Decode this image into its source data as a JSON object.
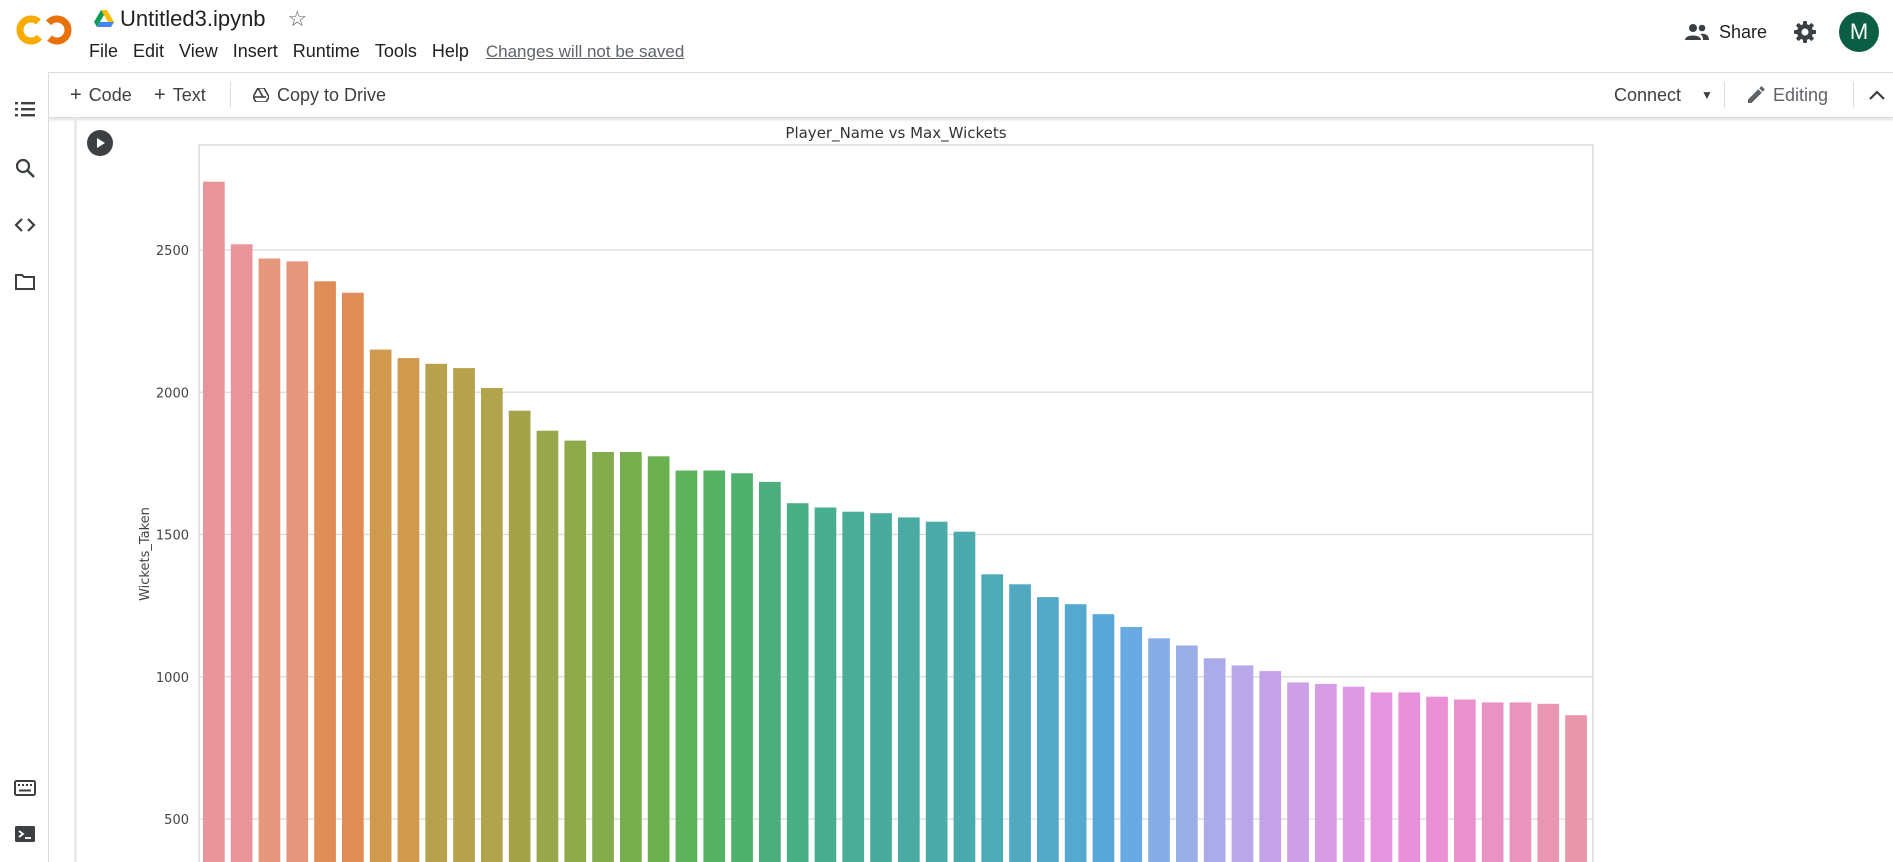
{
  "header": {
    "file_name": "Untitled3.ipynb",
    "menu": [
      "File",
      "Edit",
      "View",
      "Insert",
      "Runtime",
      "Tools",
      "Help"
    ],
    "changes_notice": "Changes will not be saved",
    "share_label": "Share",
    "avatar_letter": "M"
  },
  "toolbar": {
    "code_label": "Code",
    "text_label": "Text",
    "copy_label": "Copy to Drive",
    "connect_label": "Connect",
    "editing_label": "Editing"
  },
  "sidebar": {
    "icons": [
      "table-of-contents-icon",
      "search-icon",
      "code-snippets-icon",
      "files-icon",
      "command-palette-icon",
      "terminal-icon"
    ]
  },
  "colors": {
    "accent_orange": "#f9ab00",
    "avatar_bg": "#0b5e44"
  },
  "chart_data": {
    "type": "bar",
    "title": "Player_Name vs Max_Wickets",
    "xlabel": "",
    "ylabel": "Wickets_Taken",
    "yticks": [
      500,
      1000,
      1500,
      2000,
      2500
    ],
    "grid": true,
    "values": [
      2740,
      2520,
      2470,
      2460,
      2390,
      2350,
      2150,
      2120,
      2100,
      2085,
      2015,
      1935,
      1865,
      1830,
      1790,
      1790,
      1775,
      1725,
      1725,
      1715,
      1685,
      1610,
      1595,
      1580,
      1575,
      1560,
      1545,
      1510,
      1360,
      1325,
      1280,
      1255,
      1220,
      1175,
      1135,
      1110,
      1065,
      1040,
      1020,
      980,
      975,
      965,
      945,
      945,
      930,
      920,
      910,
      910,
      905,
      865
    ],
    "colors": [
      "#e8949a",
      "#e8949a",
      "#e8977f",
      "#e8977f",
      "#e08c56",
      "#e08c56",
      "#d09a4e",
      "#d09a4e",
      "#b7a14d",
      "#b7a14d",
      "#b1a44c",
      "#a4a34a",
      "#98a84a",
      "#8eaa4a",
      "#84ab4c",
      "#78ad4d",
      "#6db04f",
      "#5cb35a",
      "#55b264",
      "#50b06d",
      "#4cae7c",
      "#4aae86",
      "#49ad8f",
      "#49ad97",
      "#49ab9d",
      "#4aaba2",
      "#4aaba8",
      "#4baaae",
      "#4daab7",
      "#50a9be",
      "#52a8c6",
      "#55a8ce",
      "#58a8d7",
      "#68aae2",
      "#87ade6",
      "#9aaee8",
      "#acabe9",
      "#b8a8ea",
      "#c3a2e8",
      "#cd9fe7",
      "#d69de5",
      "#de9be4",
      "#e696e0",
      "#e890da",
      "#e991d4",
      "#e992ce",
      "#e993c5",
      "#e994bd",
      "#e996b3",
      "#e896a9"
    ]
  }
}
